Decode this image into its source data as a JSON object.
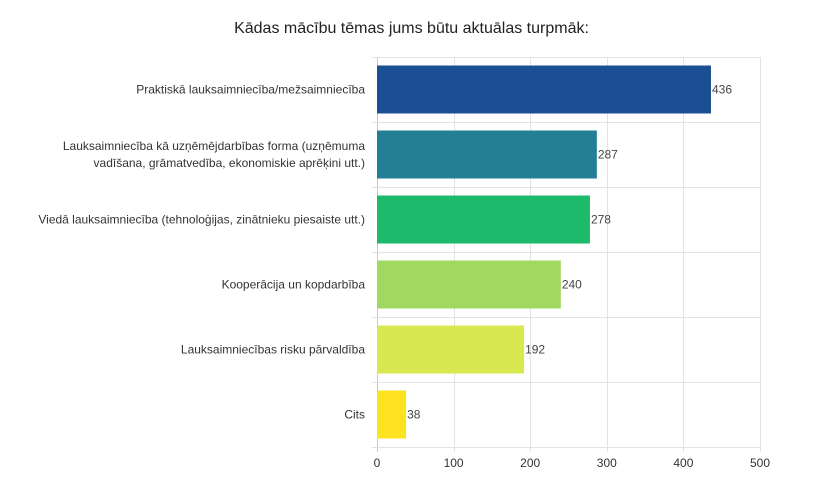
{
  "chart_data": {
    "type": "bar",
    "orientation": "horizontal",
    "title": "Kādas mācību tēmas jums būtu aktuālas turpmāk:",
    "categories": [
      "Praktiskā lauksaimniecība/mežsaimniecība",
      "Lauksaimniecība kā uzņēmējdarbības forma (uzņēmuma vadīšana, grāmatvedība, ekonomiskie aprēķini utt.)",
      "Viedā lauksaimniecība (tehnoloģijas, zinātnieku piesaiste utt.)",
      "Kooperācija un kopdarbība",
      "Lauksaimniecības risku pārvaldība",
      "Cits"
    ],
    "category_lines": [
      [
        "Praktiskā lauksaimniecība/mežsaimniecība"
      ],
      [
        "Lauksaimniecība kā uzņēmējdarbības forma (uzņēmuma",
        "vadīšana, grāmatvedība, ekonomiskie aprēķini utt.)"
      ],
      [
        "Viedā lauksaimniecība (tehnoloģijas, zinātnieku piesaiste utt.)"
      ],
      [
        "Kooperācija un kopdarbība"
      ],
      [
        "Lauksaimniecības risku pārvaldība"
      ],
      [
        "Cits"
      ]
    ],
    "values": [
      436,
      287,
      278,
      240,
      192,
      38
    ],
    "colors": [
      "#1b4f93",
      "#237f94",
      "#1dba6c",
      "#a0d862",
      "#d8e851",
      "#fde21f"
    ],
    "xlim": [
      0,
      500
    ],
    "xticks": [
      0,
      100,
      200,
      300,
      400,
      500
    ],
    "grid": true,
    "legend": "none"
  }
}
